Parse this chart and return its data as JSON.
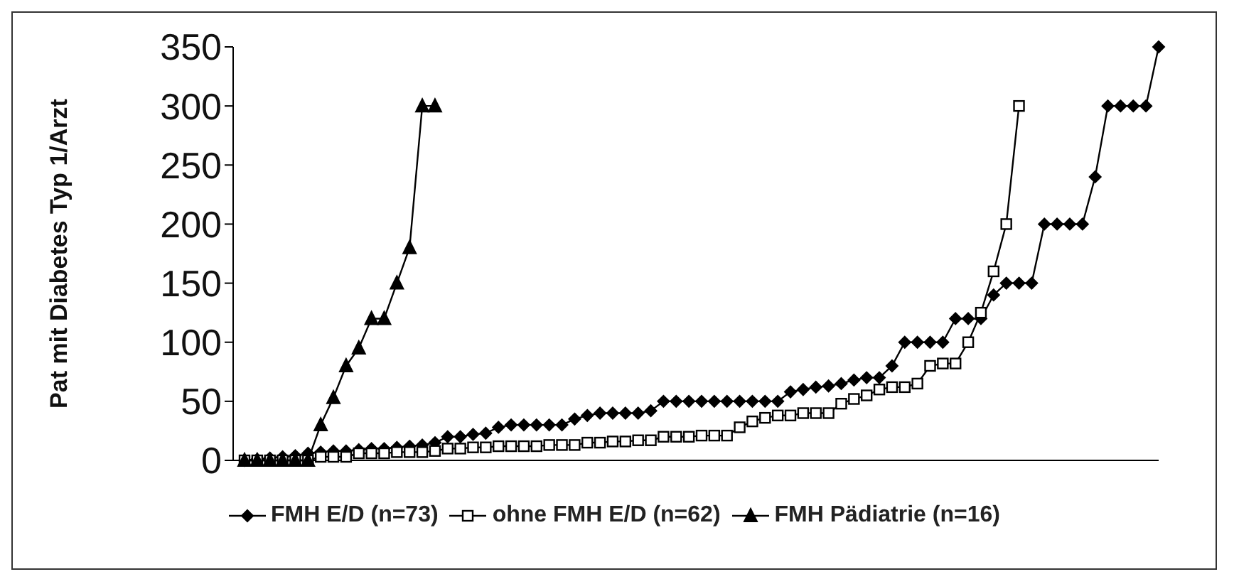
{
  "chart_data": {
    "type": "line",
    "ylabel": "Pat mit Diabetes Typ 1/Arzt",
    "categories": [
      null,
      null,
      null,
      null,
      null,
      null,
      null,
      null,
      null,
      null,
      null,
      null,
      null,
      null,
      null,
      null,
      null,
      null,
      null,
      null,
      null,
      null,
      null,
      null,
      null,
      null,
      null,
      null,
      null,
      null,
      null,
      null,
      null,
      null,
      null,
      null,
      null,
      null,
      null,
      null,
      null,
      null,
      null,
      null,
      null,
      null,
      null,
      null,
      null,
      null,
      null,
      null,
      null,
      null,
      null,
      null,
      null,
      null,
      null,
      null,
      null,
      null,
      null,
      null,
      null,
      null,
      null,
      null,
      null,
      null,
      null,
      null,
      null
    ],
    "series": [
      {
        "name": "FMH E/D (n=73)",
        "color": "#000000",
        "marker": "diamond",
        "values": [
          0,
          1,
          2,
          3,
          4,
          6,
          7,
          8,
          8,
          9,
          10,
          10,
          11,
          12,
          13,
          15,
          20,
          20,
          22,
          23,
          28,
          30,
          30,
          30,
          30,
          30,
          35,
          38,
          40,
          40,
          40,
          40,
          42,
          50,
          50,
          50,
          50,
          50,
          50,
          50,
          50,
          50,
          50,
          58,
          60,
          62,
          63,
          65,
          68,
          70,
          70,
          80,
          100,
          100,
          100,
          100,
          120,
          120,
          120,
          140,
          150,
          150,
          150,
          200,
          200,
          200,
          200,
          240,
          300,
          300,
          300,
          300,
          350
        ]
      },
      {
        "name": "ohne FMH E/D (n=62)",
        "color": "#000000",
        "marker": "square",
        "values": [
          0,
          0,
          0,
          0,
          0,
          0,
          3,
          3,
          3,
          6,
          6,
          6,
          7,
          7,
          7,
          8,
          10,
          10,
          11,
          11,
          12,
          12,
          12,
          12,
          13,
          13,
          13,
          15,
          15,
          16,
          16,
          17,
          17,
          20,
          20,
          20,
          21,
          21,
          21,
          28,
          33,
          36,
          38,
          38,
          40,
          40,
          40,
          48,
          52,
          55,
          60,
          62,
          62,
          65,
          80,
          82,
          82,
          100,
          125,
          160,
          200,
          300,
          null,
          null,
          null,
          null,
          null,
          null,
          null,
          null,
          null,
          null,
          null
        ]
      },
      {
        "name": "FMH Pädiatrie (n=16)",
        "color": "#000000",
        "marker": "triangle",
        "values": [
          0,
          0,
          0,
          0,
          0,
          0,
          30,
          53,
          80,
          95,
          120,
          120,
          150,
          180,
          300,
          300,
          null,
          null,
          null,
          null,
          null,
          null,
          null,
          null,
          null,
          null,
          null,
          null,
          null,
          null,
          null,
          null,
          null,
          null,
          null,
          null,
          null,
          null,
          null,
          null,
          null,
          null,
          null,
          null,
          null,
          null,
          null,
          null,
          null,
          null,
          null,
          null,
          null,
          null,
          null,
          null,
          null,
          null,
          null,
          null,
          null,
          null,
          null,
          null,
          null,
          null,
          null,
          null,
          null,
          null,
          null,
          null,
          null
        ]
      }
    ],
    "ylim": [
      0,
      350
    ],
    "yticks": [
      0,
      50,
      100,
      150,
      200,
      250,
      300,
      350
    ],
    "legend": "bottom",
    "line_style": "solid"
  }
}
